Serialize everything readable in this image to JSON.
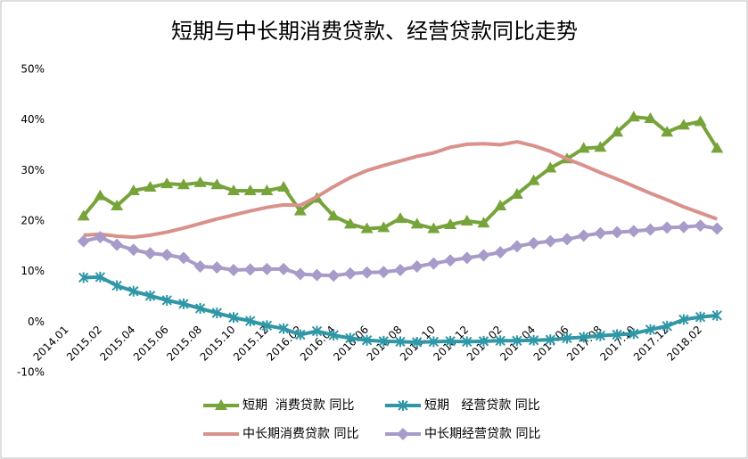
{
  "chart_data": {
    "type": "line",
    "title": "短期与中长期消费贷款、经营贷款同比走势",
    "categories": [
      "2014.01",
      null,
      "2015.02",
      null,
      "2015.04",
      null,
      "2015.06",
      null,
      "2015.08",
      null,
      "2015.10",
      null,
      "2015.12",
      null,
      "2016.02",
      null,
      "2016.04",
      null,
      "2016.06",
      null,
      "2016.08",
      null,
      "2016.10",
      null,
      "2016.12",
      null,
      "2017.02",
      null,
      "2017.04",
      null,
      "2017.06",
      null,
      "2017.08",
      null,
      "2017.10",
      null,
      "2017.12",
      null,
      "2018.02",
      null
    ],
    "ylim": [
      -10,
      50
    ],
    "yticks": [
      {
        "value": -10,
        "label": "-10%"
      },
      {
        "value": 0,
        "label": "0%"
      },
      {
        "value": 10,
        "label": "10%"
      },
      {
        "value": 20,
        "label": "20%"
      },
      {
        "value": 30,
        "label": "30%"
      },
      {
        "value": 40,
        "label": "40%"
      },
      {
        "value": 50,
        "label": "50%"
      }
    ],
    "series": [
      {
        "name": "短期  消费贷款 同比",
        "color": "#77a43a",
        "marker": "triangle",
        "values": [
          null,
          21,
          25,
          23,
          26,
          26.7,
          27.4,
          27.2,
          27.6,
          27.2,
          26,
          26,
          26,
          26.7,
          22,
          24.5,
          21,
          19.4,
          18.5,
          18.7,
          20.5,
          19.4,
          18.5,
          19.3,
          20,
          19.6,
          23,
          25.3,
          28,
          30.5,
          32.3,
          34.4,
          34.6,
          37.6,
          40.6,
          40.3,
          37.6,
          39,
          39.7,
          34.4
        ]
      },
      {
        "name": "短期   经营贷款 同比",
        "color": "#2f97a6",
        "marker": "asterisk",
        "values": [
          null,
          8.8,
          8.9,
          7.2,
          6.1,
          5.2,
          4.3,
          3.6,
          2.7,
          1.8,
          0.9,
          0.2,
          -0.7,
          -1.3,
          -2.5,
          -1.8,
          -2.6,
          -3.2,
          -3.6,
          -3.8,
          -3.9,
          -4.0,
          -3.9,
          -3.8,
          -3.9,
          -3.8,
          -3.7,
          -3.7,
          -3.6,
          -3.5,
          -3.2,
          -3.0,
          -2.7,
          -2.5,
          -2.3,
          -1.5,
          -0.8,
          0.5,
          1.0,
          1.3
        ]
      },
      {
        "name": "中长期消费贷款 同比",
        "color": "#d9918c",
        "marker": "none",
        "values": [
          null,
          17.2,
          17.4,
          17.0,
          16.8,
          17.2,
          17.8,
          18.6,
          19.5,
          20.4,
          21.2,
          22.0,
          22.7,
          23.2,
          23.1,
          24.8,
          26.8,
          28.6,
          30.0,
          31.0,
          31.9,
          32.8,
          33.5,
          34.6,
          35.2,
          35.3,
          35.1,
          35.7,
          34.9,
          33.8,
          32.3,
          31.0,
          29.6,
          28.3,
          26.9,
          25.5,
          24.2,
          22.8,
          21.6,
          20.4
        ]
      },
      {
        "name": "中长期经营贷款 同比",
        "color": "#a89bc9",
        "marker": "diamond",
        "values": [
          null,
          16.0,
          16.8,
          15.3,
          14.3,
          13.6,
          13.3,
          12.7,
          11.0,
          10.8,
          10.3,
          10.4,
          10.5,
          10.5,
          9.5,
          9.3,
          9.2,
          9.6,
          9.8,
          9.9,
          10.3,
          11.0,
          11.6,
          12.2,
          12.7,
          13.2,
          13.8,
          15.0,
          15.6,
          16.0,
          16.4,
          17.1,
          17.6,
          17.8,
          18.0,
          18.3,
          18.7,
          18.8,
          19.1,
          18.5
        ]
      }
    ]
  }
}
